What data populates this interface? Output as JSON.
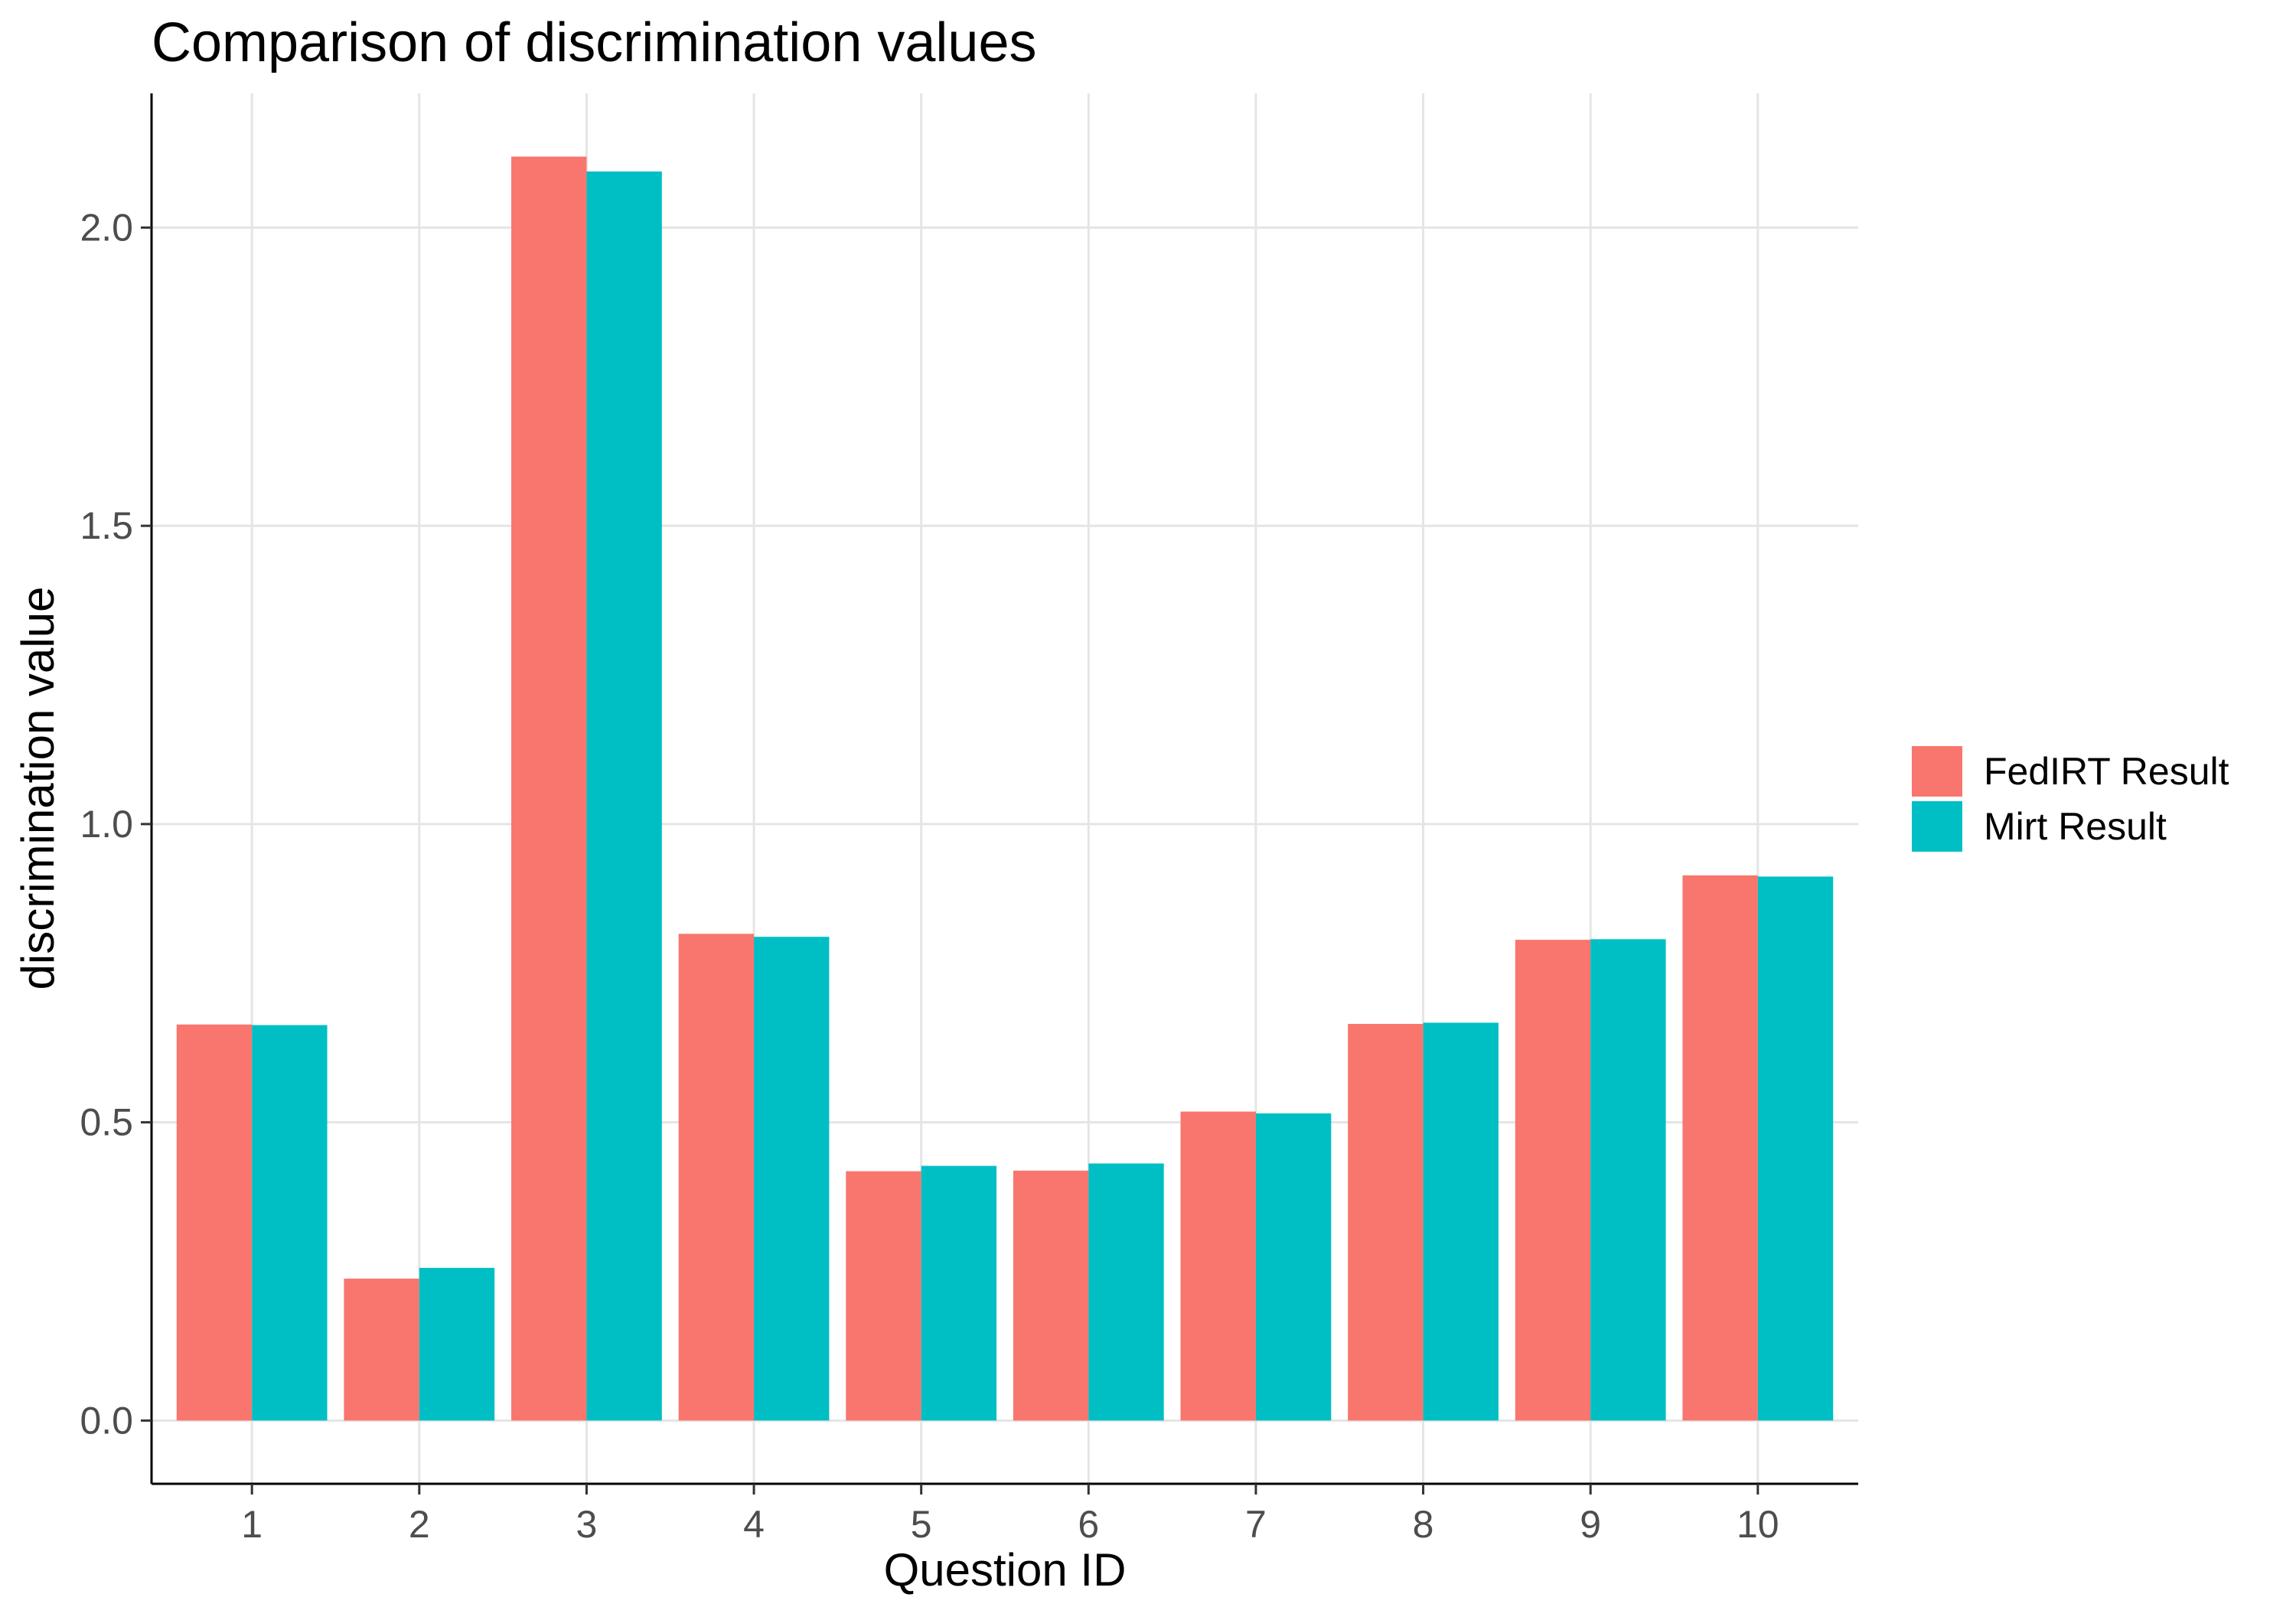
{
  "chart_data": {
    "type": "bar",
    "title": "Comparison of discrimination values",
    "xlabel": "Question ID",
    "ylabel": "discrimination value",
    "categories": [
      "1",
      "2",
      "3",
      "4",
      "5",
      "6",
      "7",
      "8",
      "9",
      "10"
    ],
    "series": [
      {
        "name": "FedIRT Result",
        "color": "#F8766D",
        "values": [
          0.664,
          0.238,
          2.119,
          0.816,
          0.418,
          0.419,
          0.518,
          0.665,
          0.806,
          0.914
        ]
      },
      {
        "name": "Mirt Result",
        "color": "#00BFC4",
        "values": [
          0.663,
          0.256,
          2.094,
          0.811,
          0.427,
          0.431,
          0.515,
          0.667,
          0.807,
          0.912
        ]
      }
    ],
    "ylim": [
      -0.106,
      2.225
    ],
    "yticks": [
      "0.0",
      "0.5",
      "1.0",
      "1.5",
      "2.0"
    ],
    "grid": true,
    "legend_position": "right"
  }
}
